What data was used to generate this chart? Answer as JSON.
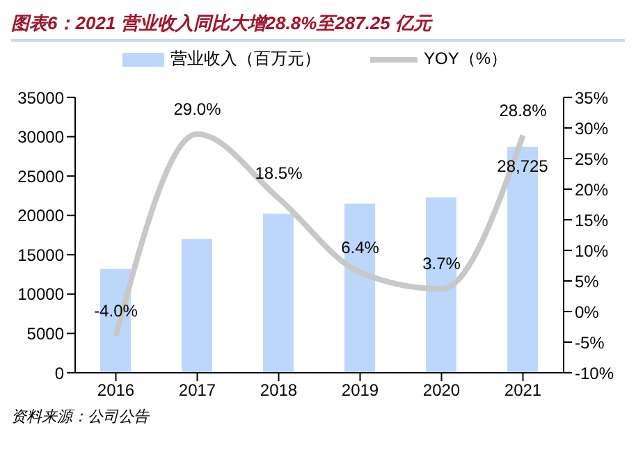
{
  "chart_data": {
    "type": "bar",
    "title": "图表6：2021 营业收入同比大增28.8%至287.25 亿元",
    "categories": [
      "2016",
      "2017",
      "2018",
      "2019",
      "2020",
      "2021"
    ],
    "series": [
      {
        "name": "营业收入（百万元）",
        "color": "#bdd7fb",
        "values": [
          13200,
          17000,
          20200,
          21500,
          22300,
          28725
        ],
        "value_labels": [
          null,
          null,
          null,
          null,
          null,
          "28,725"
        ]
      },
      {
        "name": "YOY（%）",
        "type": "line",
        "axis": "y2",
        "color": "#c8c8c8",
        "values": [
          -4.0,
          29.0,
          18.5,
          6.4,
          3.7,
          28.8
        ],
        "value_labels": [
          "-4.0%",
          "29.0%",
          "18.5%",
          "6.4%",
          "3.7%",
          "28.8%"
        ]
      }
    ],
    "ylim": [
      0,
      35000
    ],
    "yticks": [
      0,
      5000,
      10000,
      15000,
      20000,
      25000,
      30000,
      35000
    ],
    "y2lim": [
      -10,
      35
    ],
    "y2ticks": [
      {
        "value": -10,
        "label": "-10%"
      },
      {
        "value": -5,
        "label": "-5%"
      },
      {
        "value": 0,
        "label": "0%"
      },
      {
        "value": 5,
        "label": "5%"
      },
      {
        "value": 10,
        "label": "10%"
      },
      {
        "value": 15,
        "label": "15%"
      },
      {
        "value": 20,
        "label": "20%"
      },
      {
        "value": 25,
        "label": "25%"
      },
      {
        "value": 30,
        "label": "30%"
      },
      {
        "value": 35,
        "label": "35%"
      }
    ],
    "legend": "top",
    "grid": false,
    "marker": "none",
    "line_style": "solid",
    "annotations": [
      "资料来源：公司公告"
    ]
  }
}
